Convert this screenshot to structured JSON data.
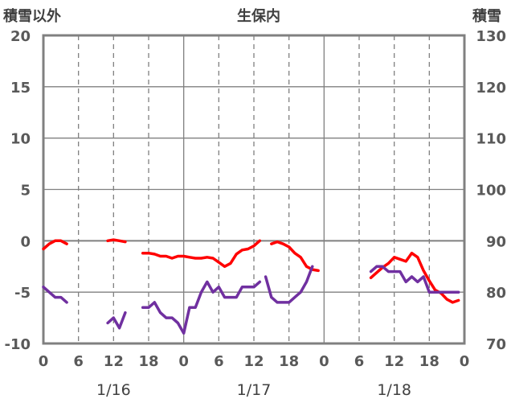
{
  "chart_data": {
    "type": "line",
    "title": "生保内",
    "ylabel_left": "積雪以外",
    "ylabel_right": "積雪",
    "ylim_left": [
      -10,
      20
    ],
    "ylim_right": [
      70,
      130
    ],
    "y_ticks_left": [
      "20",
      "15",
      "10",
      "5",
      "0",
      "-5",
      "-10"
    ],
    "y_ticks_right": [
      "130",
      "120",
      "110",
      "100",
      "90",
      "80",
      "70"
    ],
    "xlim_hours": [
      0,
      72
    ],
    "x_tick_labels": [
      "0",
      "6",
      "12",
      "18",
      "0",
      "6",
      "12",
      "18",
      "0",
      "6",
      "12",
      "18",
      "0"
    ],
    "date_labels": [
      "1/16",
      "1/17",
      "1/18"
    ],
    "grid": true,
    "colors": {
      "red_series": "#ff0000",
      "purple_series": "#7030a0",
      "axis": "#808080",
      "grid": "#808080"
    },
    "series": [
      {
        "axis": "left",
        "color": "#ff0000",
        "segments": [
          [
            [
              0,
              -0.8
            ],
            [
              1,
              -0.3
            ],
            [
              2,
              0
            ],
            [
              3,
              0
            ],
            [
              4,
              -0.3
            ]
          ],
          [
            [
              11,
              0
            ],
            [
              12,
              0.1
            ],
            [
              13,
              0
            ],
            [
              14,
              -0.1
            ]
          ],
          [
            [
              17,
              -1.2
            ],
            [
              18,
              -1.2
            ],
            [
              19,
              -1.3
            ],
            [
              20,
              -1.5
            ],
            [
              21,
              -1.5
            ],
            [
              22,
              -1.7
            ],
            [
              23,
              -1.5
            ],
            [
              24,
              -1.5
            ],
            [
              25,
              -1.6
            ],
            [
              26,
              -1.7
            ],
            [
              27,
              -1.7
            ],
            [
              28,
              -1.6
            ],
            [
              29,
              -1.7
            ],
            [
              30,
              -2.1
            ],
            [
              31,
              -2.5
            ],
            [
              32,
              -2.2
            ],
            [
              33,
              -1.3
            ],
            [
              34,
              -0.9
            ],
            [
              35,
              -0.8
            ],
            [
              36,
              -0.5
            ],
            [
              37,
              0
            ]
          ],
          [
            [
              39,
              -0.3
            ],
            [
              40,
              -0.1
            ],
            [
              41,
              -0.3
            ],
            [
              42,
              -0.6
            ],
            [
              43,
              -1.2
            ],
            [
              44,
              -1.6
            ],
            [
              45,
              -2.5
            ],
            [
              46,
              -2.8
            ],
            [
              47,
              -2.9
            ]
          ],
          [
            [
              56,
              -3.6
            ],
            [
              57,
              -3.1
            ],
            [
              58,
              -2.6
            ],
            [
              59,
              -2.2
            ],
            [
              60,
              -1.6
            ],
            [
              61,
              -1.8
            ],
            [
              62,
              -2.0
            ],
            [
              63,
              -1.2
            ],
            [
              64,
              -1.6
            ],
            [
              65,
              -2.9
            ],
            [
              66,
              -3.9
            ],
            [
              67,
              -4.8
            ],
            [
              68,
              -5.1
            ],
            [
              69,
              -5.7
            ],
            [
              70,
              -6.0
            ],
            [
              71,
              -5.8
            ]
          ]
        ]
      },
      {
        "axis": "right",
        "color": "#7030a0",
        "segments": [
          [
            [
              0,
              81
            ],
            [
              1,
              80
            ],
            [
              2,
              79
            ],
            [
              3,
              79
            ],
            [
              4,
              78
            ]
          ],
          [
            [
              11,
              74
            ],
            [
              12,
              75
            ],
            [
              13,
              73
            ],
            [
              14,
              76
            ]
          ],
          [
            [
              17,
              77
            ],
            [
              18,
              77
            ],
            [
              19,
              78
            ],
            [
              20,
              76
            ],
            [
              21,
              75
            ],
            [
              22,
              75
            ],
            [
              23,
              74
            ],
            [
              24,
              72
            ],
            [
              25,
              77
            ],
            [
              26,
              77
            ],
            [
              27,
              80
            ],
            [
              28,
              82
            ],
            [
              29,
              80
            ],
            [
              30,
              81
            ],
            [
              31,
              79
            ],
            [
              32,
              79
            ],
            [
              33,
              79
            ],
            [
              34,
              81
            ],
            [
              35,
              81
            ],
            [
              36,
              81
            ],
            [
              37,
              82
            ]
          ],
          [
            [
              38,
              83
            ],
            [
              39,
              79
            ],
            [
              40,
              78
            ],
            [
              41,
              78
            ],
            [
              42,
              78
            ],
            [
              43,
              79
            ],
            [
              44,
              80
            ],
            [
              45,
              82
            ],
            [
              46,
              85
            ]
          ],
          [
            [
              56,
              84
            ],
            [
              57,
              85
            ],
            [
              58,
              85
            ],
            [
              59,
              84
            ],
            [
              60,
              84
            ],
            [
              61,
              84
            ],
            [
              62,
              82
            ],
            [
              63,
              83
            ],
            [
              64,
              82
            ],
            [
              65,
              83
            ],
            [
              66,
              80
            ],
            [
              67,
              80
            ],
            [
              68,
              80
            ],
            [
              69,
              80
            ],
            [
              70,
              80
            ],
            [
              71,
              80
            ]
          ]
        ]
      }
    ]
  }
}
